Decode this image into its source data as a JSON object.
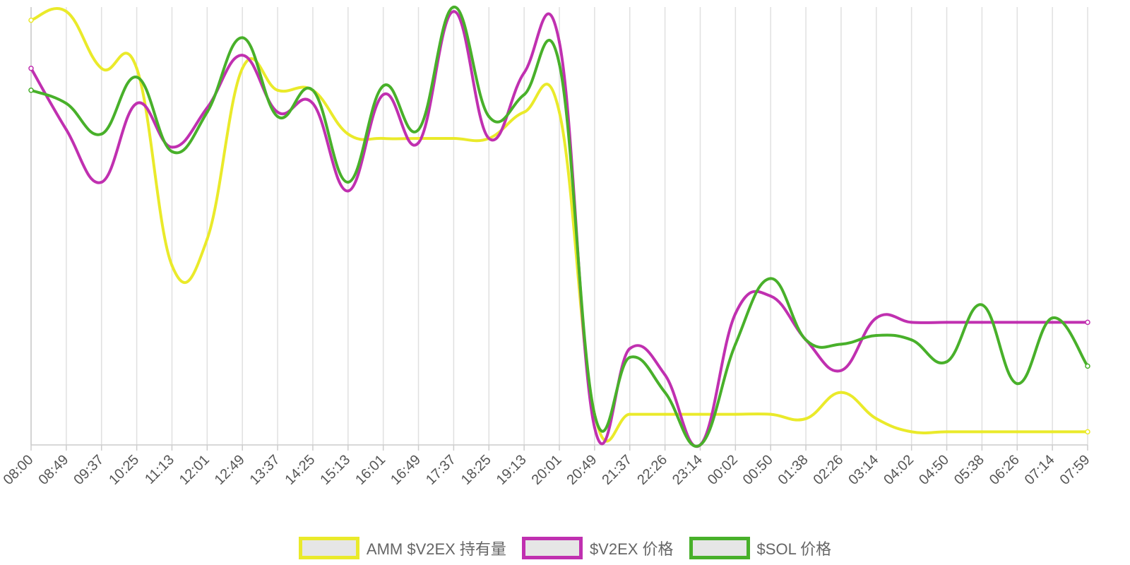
{
  "chart_data": {
    "type": "line",
    "title": "",
    "xlabel": "",
    "ylabel": "",
    "categories": [
      "08:00",
      "08:49",
      "09:37",
      "10:25",
      "11:13",
      "12:01",
      "12:49",
      "13:37",
      "14:25",
      "15:13",
      "16:01",
      "16:49",
      "17:37",
      "18:25",
      "19:13",
      "20:01",
      "20:49",
      "21:37",
      "22:26",
      "23:14",
      "00:02",
      "00:50",
      "01:38",
      "02:26",
      "03:14",
      "04:02",
      "04:50",
      "05:38",
      "06:26",
      "07:14",
      "07:59"
    ],
    "y_axis_labels": "hidden",
    "grid": "vertical",
    "legend_position": "bottom",
    "series": [
      {
        "name": "AMM $V2EX 持有量",
        "color": "#eaea2a",
        "values": [
          97,
          99,
          86,
          86,
          41,
          47,
          86,
          81,
          81,
          71,
          70,
          70,
          70,
          70,
          76,
          76,
          7,
          7,
          7,
          7,
          7,
          7,
          6,
          12,
          6,
          3,
          3,
          3,
          3,
          3,
          3
        ]
      },
      {
        "name": "$V2EX 价格",
        "color": "#c030b0",
        "values": [
          86,
          72,
          60,
          78,
          68,
          77,
          89,
          76,
          78,
          58,
          80,
          69,
          99,
          70,
          85,
          92,
          4,
          22,
          16,
          0,
          30,
          34,
          24,
          17,
          29,
          28,
          28,
          28,
          28,
          28,
          28
        ]
      },
      {
        "name": "$SOL 价格",
        "color": "#48b02a",
        "values": [
          81,
          78,
          71,
          84,
          67,
          76,
          93,
          75,
          81,
          60,
          82,
          72,
          100,
          75,
          80,
          87,
          7,
          20,
          12,
          0,
          23,
          38,
          24,
          23,
          25,
          24,
          19,
          32,
          14,
          29,
          18
        ]
      }
    ]
  }
}
